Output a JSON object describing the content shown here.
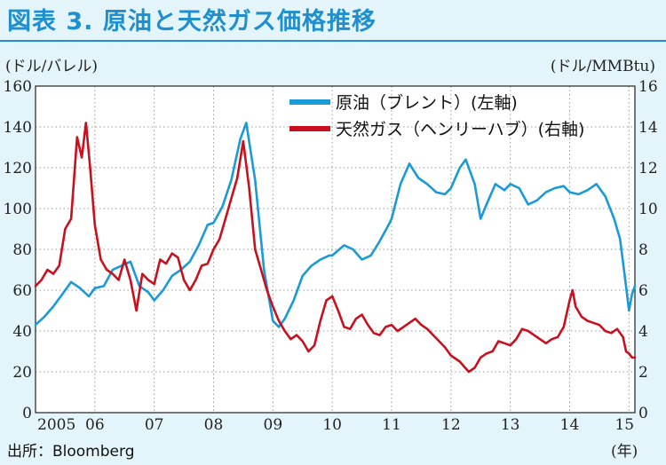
{
  "title": "図表 3. 原油と天然ガス価格推移",
  "left_unit": "(ドル/バレル)",
  "right_unit": "(ドル/MMBtu)",
  "source": "出所：Bloomberg",
  "year_unit": "(年)",
  "colors": {
    "oil": "#1a9ad6",
    "gas": "#c8101e",
    "accent": "#1f8fcd",
    "background": "#e4f4fb"
  },
  "chart_data": {
    "type": "line",
    "xlim": [
      2005.0,
      2015.1
    ],
    "ylim_left": [
      0,
      160
    ],
    "ylim_right": [
      0,
      16
    ],
    "x_ticks": [
      2005,
      2006,
      2007,
      2008,
      2009,
      2010,
      2011,
      2012,
      2013,
      2014,
      2015
    ],
    "x_tick_labels": [
      "2005",
      "06",
      "07",
      "08",
      "09",
      "10",
      "11",
      "12",
      "13",
      "14",
      "15"
    ],
    "y_left_ticks": [
      0,
      20,
      40,
      60,
      80,
      100,
      120,
      140,
      160
    ],
    "y_right_ticks": [
      0,
      2,
      4,
      6,
      8,
      10,
      12,
      14,
      16
    ],
    "legend_position": "top-right",
    "series": [
      {
        "name": "原油（ブレント）(左軸)",
        "axis": "left",
        "points": [
          [
            2005.0,
            43
          ],
          [
            2005.15,
            47
          ],
          [
            2005.3,
            52
          ],
          [
            2005.45,
            58
          ],
          [
            2005.6,
            64
          ],
          [
            2005.75,
            61
          ],
          [
            2005.9,
            57
          ],
          [
            2006.0,
            61
          ],
          [
            2006.15,
            62
          ],
          [
            2006.3,
            70
          ],
          [
            2006.45,
            72
          ],
          [
            2006.6,
            74
          ],
          [
            2006.75,
            62
          ],
          [
            2006.9,
            59
          ],
          [
            2007.0,
            55
          ],
          [
            2007.15,
            60
          ],
          [
            2007.3,
            67
          ],
          [
            2007.45,
            70
          ],
          [
            2007.6,
            74
          ],
          [
            2007.75,
            82
          ],
          [
            2007.9,
            92
          ],
          [
            2008.0,
            93
          ],
          [
            2008.15,
            101
          ],
          [
            2008.3,
            114
          ],
          [
            2008.45,
            134
          ],
          [
            2008.55,
            142
          ],
          [
            2008.7,
            114
          ],
          [
            2008.85,
            70
          ],
          [
            2009.0,
            45
          ],
          [
            2009.1,
            42
          ],
          [
            2009.2,
            46
          ],
          [
            2009.35,
            55
          ],
          [
            2009.5,
            67
          ],
          [
            2009.65,
            72
          ],
          [
            2009.8,
            75
          ],
          [
            2009.95,
            77
          ],
          [
            2010.0,
            77
          ],
          [
            2010.2,
            82
          ],
          [
            2010.35,
            80
          ],
          [
            2010.5,
            75
          ],
          [
            2010.65,
            77
          ],
          [
            2010.8,
            84
          ],
          [
            2010.95,
            92
          ],
          [
            2011.0,
            95
          ],
          [
            2011.15,
            112
          ],
          [
            2011.3,
            122
          ],
          [
            2011.45,
            115
          ],
          [
            2011.6,
            112
          ],
          [
            2011.75,
            108
          ],
          [
            2011.9,
            107
          ],
          [
            2012.0,
            110
          ],
          [
            2012.15,
            120
          ],
          [
            2012.25,
            124
          ],
          [
            2012.4,
            112
          ],
          [
            2012.5,
            95
          ],
          [
            2012.6,
            102
          ],
          [
            2012.75,
            112
          ],
          [
            2012.9,
            109
          ],
          [
            2013.0,
            112
          ],
          [
            2013.15,
            110
          ],
          [
            2013.3,
            102
          ],
          [
            2013.45,
            104
          ],
          [
            2013.6,
            108
          ],
          [
            2013.75,
            110
          ],
          [
            2013.9,
            111
          ],
          [
            2014.0,
            108
          ],
          [
            2014.15,
            107
          ],
          [
            2014.3,
            109
          ],
          [
            2014.45,
            112
          ],
          [
            2014.6,
            106
          ],
          [
            2014.75,
            95
          ],
          [
            2014.85,
            85
          ],
          [
            2014.95,
            62
          ],
          [
            2015.0,
            50
          ],
          [
            2015.05,
            58
          ],
          [
            2015.1,
            62
          ]
        ]
      },
      {
        "name": "天然ガス（ヘンリーハブ）(右軸)",
        "axis": "right",
        "points": [
          [
            2005.0,
            6.2
          ],
          [
            2005.1,
            6.5
          ],
          [
            2005.2,
            7.0
          ],
          [
            2005.3,
            6.8
          ],
          [
            2005.4,
            7.2
          ],
          [
            2005.5,
            9.0
          ],
          [
            2005.6,
            9.5
          ],
          [
            2005.7,
            13.5
          ],
          [
            2005.78,
            12.5
          ],
          [
            2005.85,
            14.2
          ],
          [
            2005.92,
            12.0
          ],
          [
            2006.0,
            9.2
          ],
          [
            2006.1,
            7.5
          ],
          [
            2006.2,
            7.0
          ],
          [
            2006.3,
            6.8
          ],
          [
            2006.4,
            6.5
          ],
          [
            2006.5,
            7.5
          ],
          [
            2006.6,
            6.5
          ],
          [
            2006.7,
            5.0
          ],
          [
            2006.8,
            6.8
          ],
          [
            2006.9,
            6.5
          ],
          [
            2007.0,
            6.3
          ],
          [
            2007.1,
            7.5
          ],
          [
            2007.2,
            7.3
          ],
          [
            2007.3,
            7.8
          ],
          [
            2007.4,
            7.6
          ],
          [
            2007.5,
            6.5
          ],
          [
            2007.6,
            6.0
          ],
          [
            2007.7,
            6.5
          ],
          [
            2007.8,
            7.2
          ],
          [
            2007.9,
            7.3
          ],
          [
            2008.0,
            8.0
          ],
          [
            2008.1,
            8.5
          ],
          [
            2008.2,
            9.5
          ],
          [
            2008.3,
            10.5
          ],
          [
            2008.4,
            11.5
          ],
          [
            2008.5,
            13.3
          ],
          [
            2008.6,
            11.0
          ],
          [
            2008.7,
            8.0
          ],
          [
            2008.8,
            7.0
          ],
          [
            2008.9,
            6.0
          ],
          [
            2009.0,
            5.2
          ],
          [
            2009.1,
            4.5
          ],
          [
            2009.2,
            4.0
          ],
          [
            2009.3,
            3.6
          ],
          [
            2009.4,
            3.8
          ],
          [
            2009.5,
            3.5
          ],
          [
            2009.6,
            3.0
          ],
          [
            2009.7,
            3.3
          ],
          [
            2009.8,
            4.5
          ],
          [
            2009.9,
            5.5
          ],
          [
            2010.0,
            5.7
          ],
          [
            2010.1,
            5.0
          ],
          [
            2010.2,
            4.2
          ],
          [
            2010.3,
            4.1
          ],
          [
            2010.4,
            4.6
          ],
          [
            2010.5,
            4.8
          ],
          [
            2010.6,
            4.3
          ],
          [
            2010.7,
            3.9
          ],
          [
            2010.8,
            3.8
          ],
          [
            2010.9,
            4.2
          ],
          [
            2011.0,
            4.3
          ],
          [
            2011.1,
            4.0
          ],
          [
            2011.2,
            4.2
          ],
          [
            2011.3,
            4.4
          ],
          [
            2011.4,
            4.6
          ],
          [
            2011.5,
            4.3
          ],
          [
            2011.6,
            4.1
          ],
          [
            2011.7,
            3.8
          ],
          [
            2011.8,
            3.5
          ],
          [
            2011.9,
            3.2
          ],
          [
            2012.0,
            2.8
          ],
          [
            2012.15,
            2.5
          ],
          [
            2012.3,
            2.0
          ],
          [
            2012.4,
            2.2
          ],
          [
            2012.5,
            2.7
          ],
          [
            2012.6,
            2.9
          ],
          [
            2012.7,
            3.0
          ],
          [
            2012.8,
            3.5
          ],
          [
            2012.9,
            3.4
          ],
          [
            2013.0,
            3.3
          ],
          [
            2013.1,
            3.6
          ],
          [
            2013.2,
            4.1
          ],
          [
            2013.3,
            4.0
          ],
          [
            2013.4,
            3.8
          ],
          [
            2013.5,
            3.6
          ],
          [
            2013.6,
            3.4
          ],
          [
            2013.7,
            3.6
          ],
          [
            2013.8,
            3.7
          ],
          [
            2013.9,
            4.2
          ],
          [
            2014.0,
            5.5
          ],
          [
            2014.05,
            6.0
          ],
          [
            2014.1,
            5.2
          ],
          [
            2014.2,
            4.7
          ],
          [
            2014.3,
            4.5
          ],
          [
            2014.4,
            4.4
          ],
          [
            2014.5,
            4.3
          ],
          [
            2014.6,
            4.0
          ],
          [
            2014.7,
            3.9
          ],
          [
            2014.8,
            4.1
          ],
          [
            2014.9,
            3.7
          ],
          [
            2014.95,
            3.0
          ],
          [
            2015.0,
            2.9
          ],
          [
            2015.05,
            2.7
          ],
          [
            2015.1,
            2.7
          ]
        ]
      }
    ]
  }
}
